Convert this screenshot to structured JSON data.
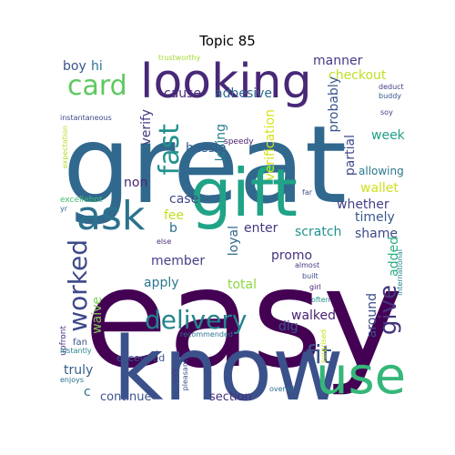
{
  "title": "Topic 85",
  "words": [
    {
      "text": "easy",
      "color": "#440154"
    },
    {
      "text": "great",
      "color": "#31688e"
    },
    {
      "text": "know",
      "color": "#3b518b"
    },
    {
      "text": "gift",
      "color": "#20a386"
    },
    {
      "text": "looking",
      "color": "#482878"
    },
    {
      "text": "use",
      "color": "#35b779"
    },
    {
      "text": "ask",
      "color": "#2c728e"
    },
    {
      "text": "delivery",
      "color": "#25838e"
    },
    {
      "text": "fast",
      "color": "#21918c"
    },
    {
      "text": "card",
      "color": "#5ec962"
    },
    {
      "text": "worked",
      "color": "#3e4989"
    },
    {
      "text": "fit",
      "color": "#3b528b"
    },
    {
      "text": "give",
      "color": "#46337e"
    },
    {
      "text": "manner",
      "color": "#443a83"
    },
    {
      "text": "checkout",
      "color": "#bddf26"
    },
    {
      "text": "adhesive",
      "color": "#31688e"
    },
    {
      "text": "cause",
      "color": "#472c7a"
    },
    {
      "text": "boy",
      "color": "#3b528b"
    },
    {
      "text": "hi",
      "color": "#2c728e"
    },
    {
      "text": "verify",
      "color": "#443983"
    },
    {
      "text": "losing",
      "color": "#26828e"
    },
    {
      "text": "verification",
      "color": "#d8e219"
    },
    {
      "text": "probably",
      "color": "#39568c"
    },
    {
      "text": "partial",
      "color": "#3e4a89"
    },
    {
      "text": "week",
      "color": "#1fa088"
    },
    {
      "text": "hassle",
      "color": "#355f8d"
    },
    {
      "text": "allowing",
      "color": "#2a778e"
    },
    {
      "text": "wallet",
      "color": "#d0e11c"
    },
    {
      "text": "non",
      "color": "#482475"
    },
    {
      "text": "case",
      "color": "#3e4989"
    },
    {
      "text": "whether",
      "color": "#433e85"
    },
    {
      "text": "timely",
      "color": "#38588c"
    },
    {
      "text": "fee",
      "color": "#c2df23"
    },
    {
      "text": "b",
      "color": "#2d708e"
    },
    {
      "text": "enter",
      "color": "#453781"
    },
    {
      "text": "scratch",
      "color": "#20928c"
    },
    {
      "text": "shame",
      "color": "#3e4989"
    },
    {
      "text": "loyal",
      "color": "#31688e"
    },
    {
      "text": "promo",
      "color": "#46327e"
    },
    {
      "text": "added",
      "color": "#29af7f"
    },
    {
      "text": "member",
      "color": "#433e85"
    },
    {
      "text": "apply",
      "color": "#2a788e"
    },
    {
      "text": "total",
      "color": "#90d743"
    },
    {
      "text": "walked",
      "color": "#481f70"
    },
    {
      "text": "dig",
      "color": "#3a548c"
    },
    {
      "text": "around",
      "color": "#3d4d8a"
    },
    {
      "text": "waive",
      "color": "#7ad151"
    },
    {
      "text": "truly",
      "color": "#355f8d"
    },
    {
      "text": "c",
      "color": "#2c738e"
    },
    {
      "text": "continue",
      "color": "#3b528b"
    },
    {
      "text": "section",
      "color": "#46307e"
    },
    {
      "text": "exceeded",
      "color": "#38588c"
    },
    {
      "text": "fan",
      "color": "#3b528b"
    },
    {
      "text": "upfront",
      "color": "#472d7b"
    },
    {
      "text": "trustworthy",
      "color": "#a5db36"
    },
    {
      "text": "instantaneous",
      "color": "#3e4989"
    },
    {
      "text": "expectation",
      "color": "#b5de2b"
    },
    {
      "text": "speedy",
      "color": "#482071"
    },
    {
      "text": "excellebnt",
      "color": "#3fbc73"
    },
    {
      "text": "deduct",
      "color": "#433e85"
    },
    {
      "text": "buddy",
      "color": "#39568c"
    },
    {
      "text": "soy",
      "color": "#453882"
    },
    {
      "text": "far",
      "color": "#3b528b"
    },
    {
      "text": "yr",
      "color": "#2e6e8e"
    },
    {
      "text": "else",
      "color": "#472d7b"
    },
    {
      "text": "almost",
      "color": "#453781"
    },
    {
      "text": "built",
      "color": "#3e4c8a"
    },
    {
      "text": "girl",
      "color": "#482173"
    },
    {
      "text": "often",
      "color": "#21918c"
    },
    {
      "text": "international",
      "color": "#26828e"
    },
    {
      "text": "recommended",
      "color": "#2c738e"
    },
    {
      "text": "instantly",
      "color": "#25848e"
    },
    {
      "text": "enjoys",
      "color": "#2d708e"
    },
    {
      "text": "sale",
      "color": "#433d84"
    },
    {
      "text": "pleasantly",
      "color": "#3c4f8a"
    },
    {
      "text": "surprised",
      "color": "#c8e020"
    },
    {
      "text": "overall",
      "color": "#2f6c8e"
    }
  ]
}
